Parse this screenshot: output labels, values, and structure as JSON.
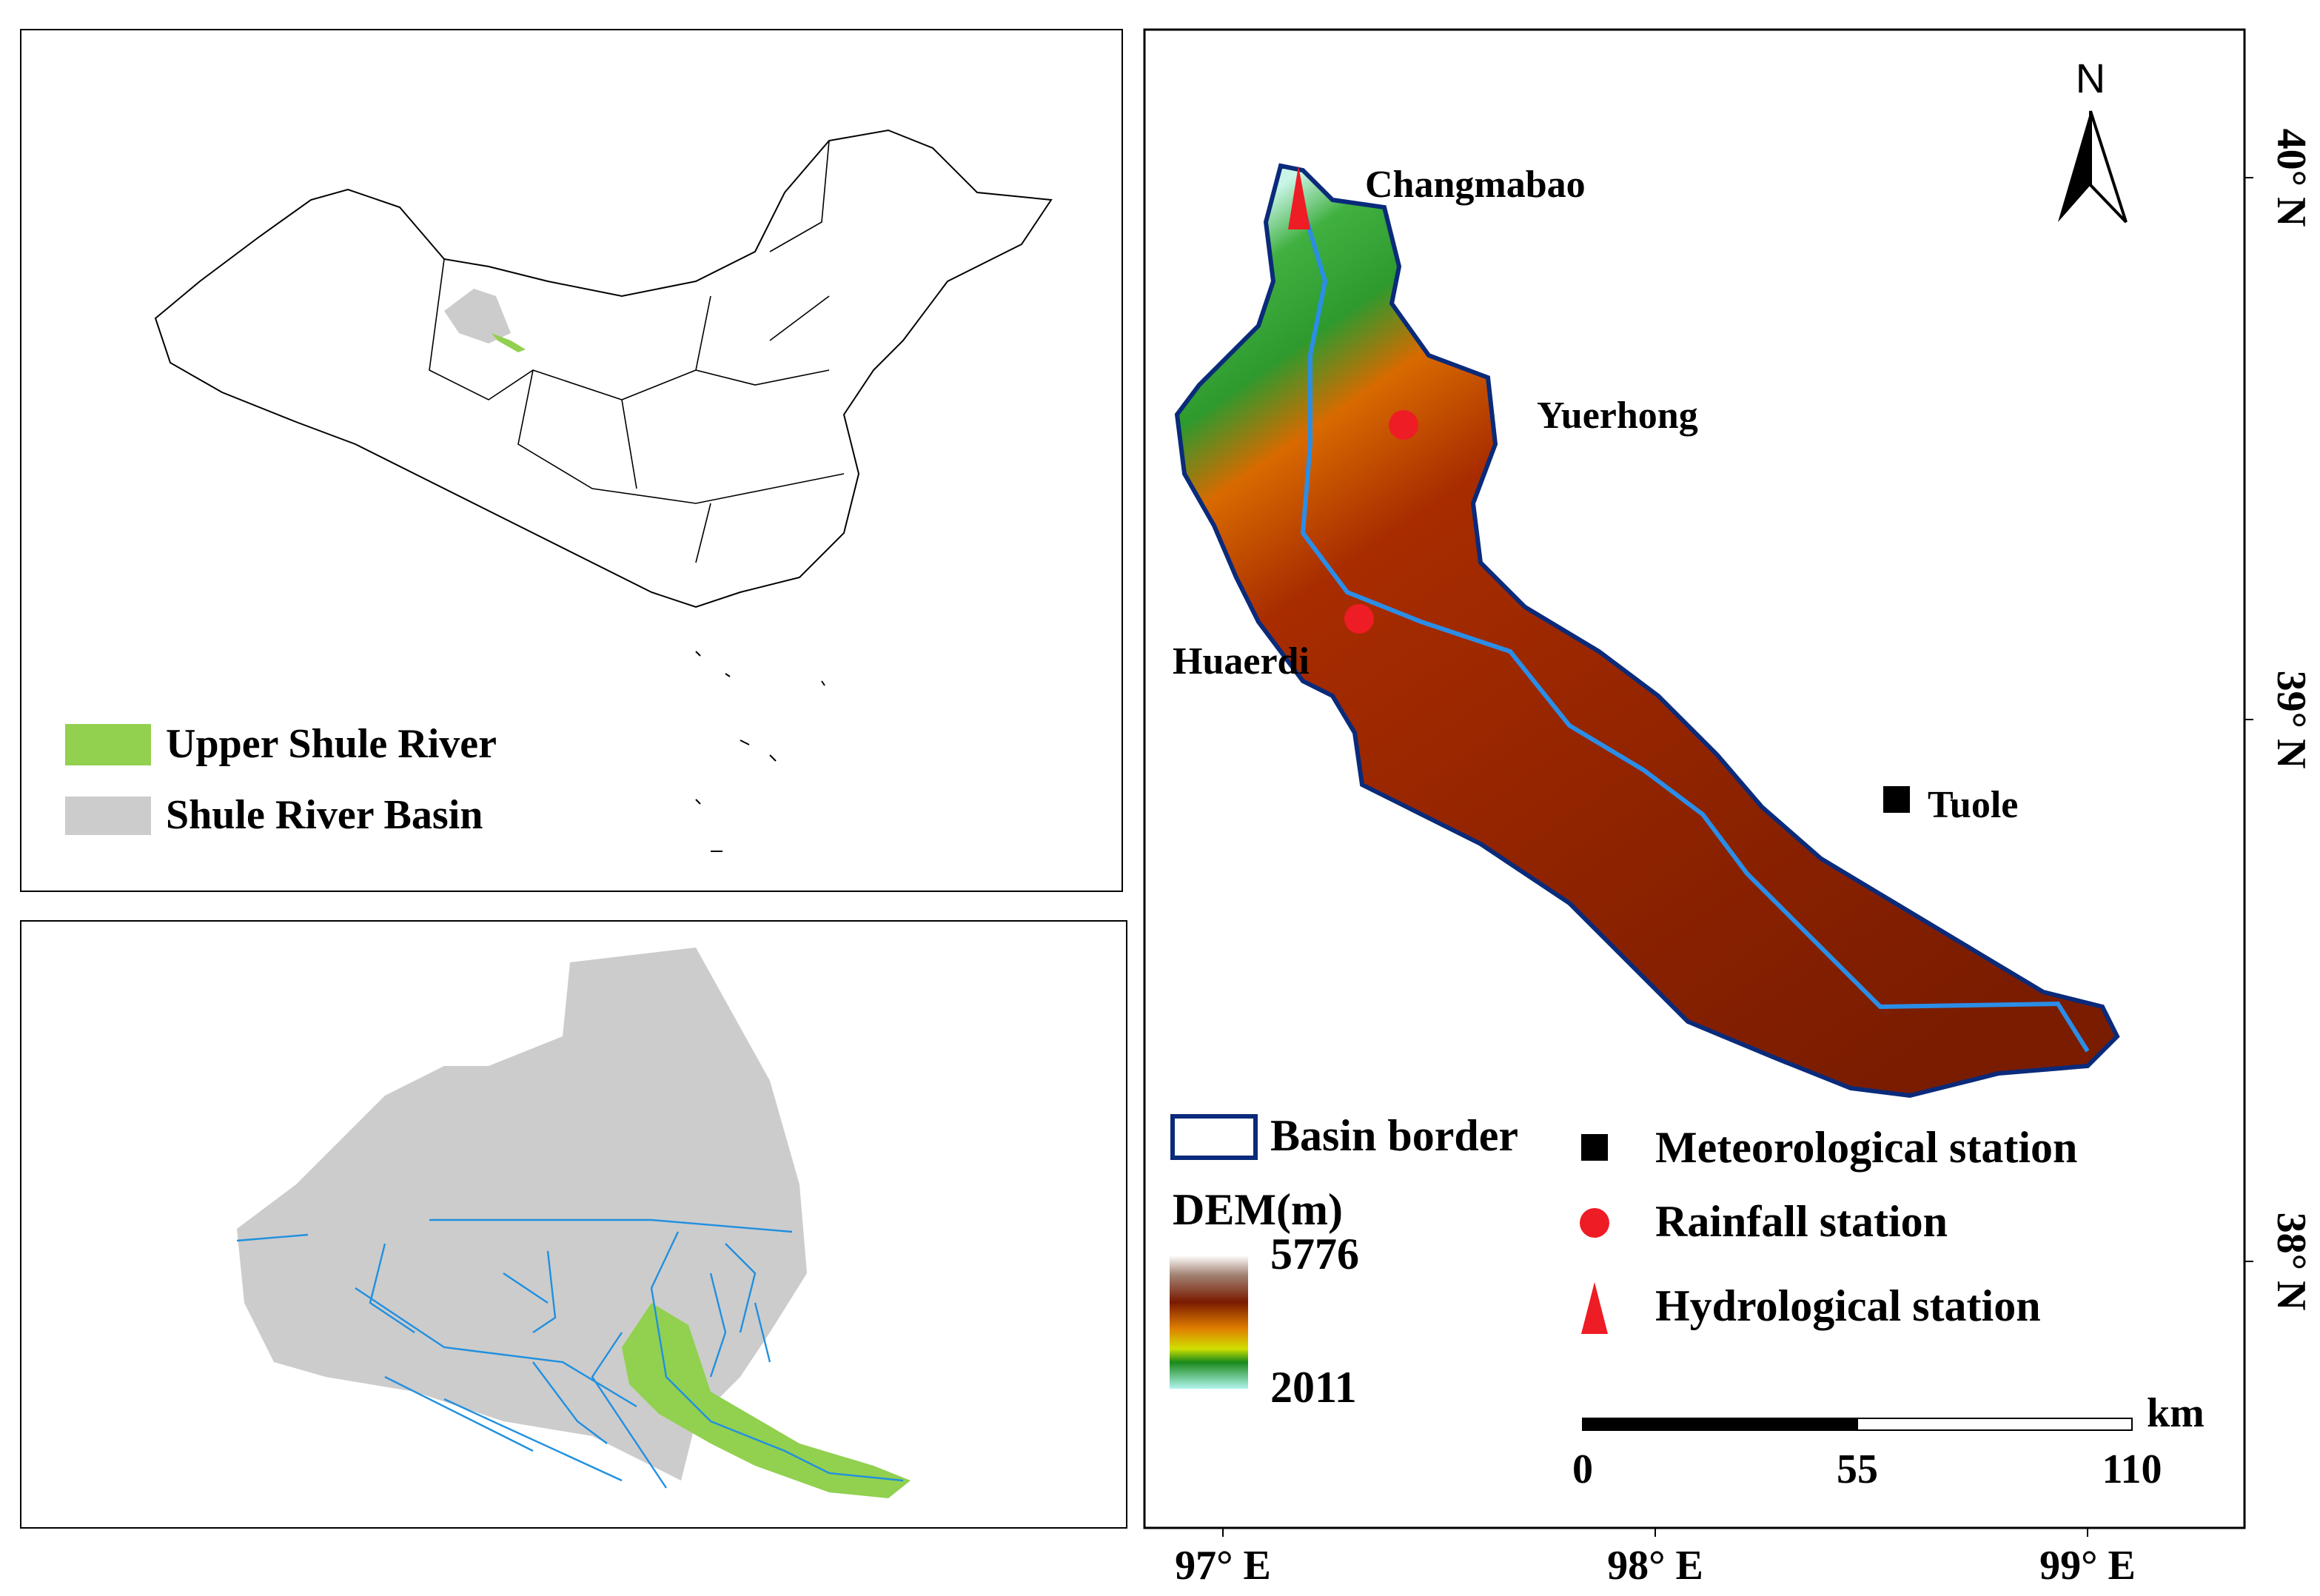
{
  "inset_legend": [
    {
      "label": "Upper Shule River",
      "color": "#92d050"
    },
    {
      "label": "Shule River Basin",
      "color": "#cccccc"
    }
  ],
  "stations": {
    "hydrological": "Changmabao",
    "rainfall": [
      "Yuerhong",
      "Huaerdi"
    ],
    "meteorological": "Tuole"
  },
  "legend": {
    "basin_border": "Basin border",
    "dem_title": "DEM(m)",
    "dem_max": 5776,
    "dem_min": 2011,
    "symbols": [
      "Meteorological station",
      "Rainfall station",
      "Hydrological station"
    ]
  },
  "north": "N",
  "scale": {
    "unit": "km",
    "ticks": [
      0,
      55,
      110
    ]
  },
  "lon_ticks": [
    {
      "value": 97,
      "label": "97° E"
    },
    {
      "value": 98,
      "label": "98° E"
    },
    {
      "value": 99,
      "label": "99° E"
    }
  ],
  "lat_ticks": [
    {
      "value": 40,
      "label": "40° N"
    },
    {
      "value": 39,
      "label": "39° N"
    },
    {
      "value": 38,
      "label": "38° N"
    }
  ]
}
